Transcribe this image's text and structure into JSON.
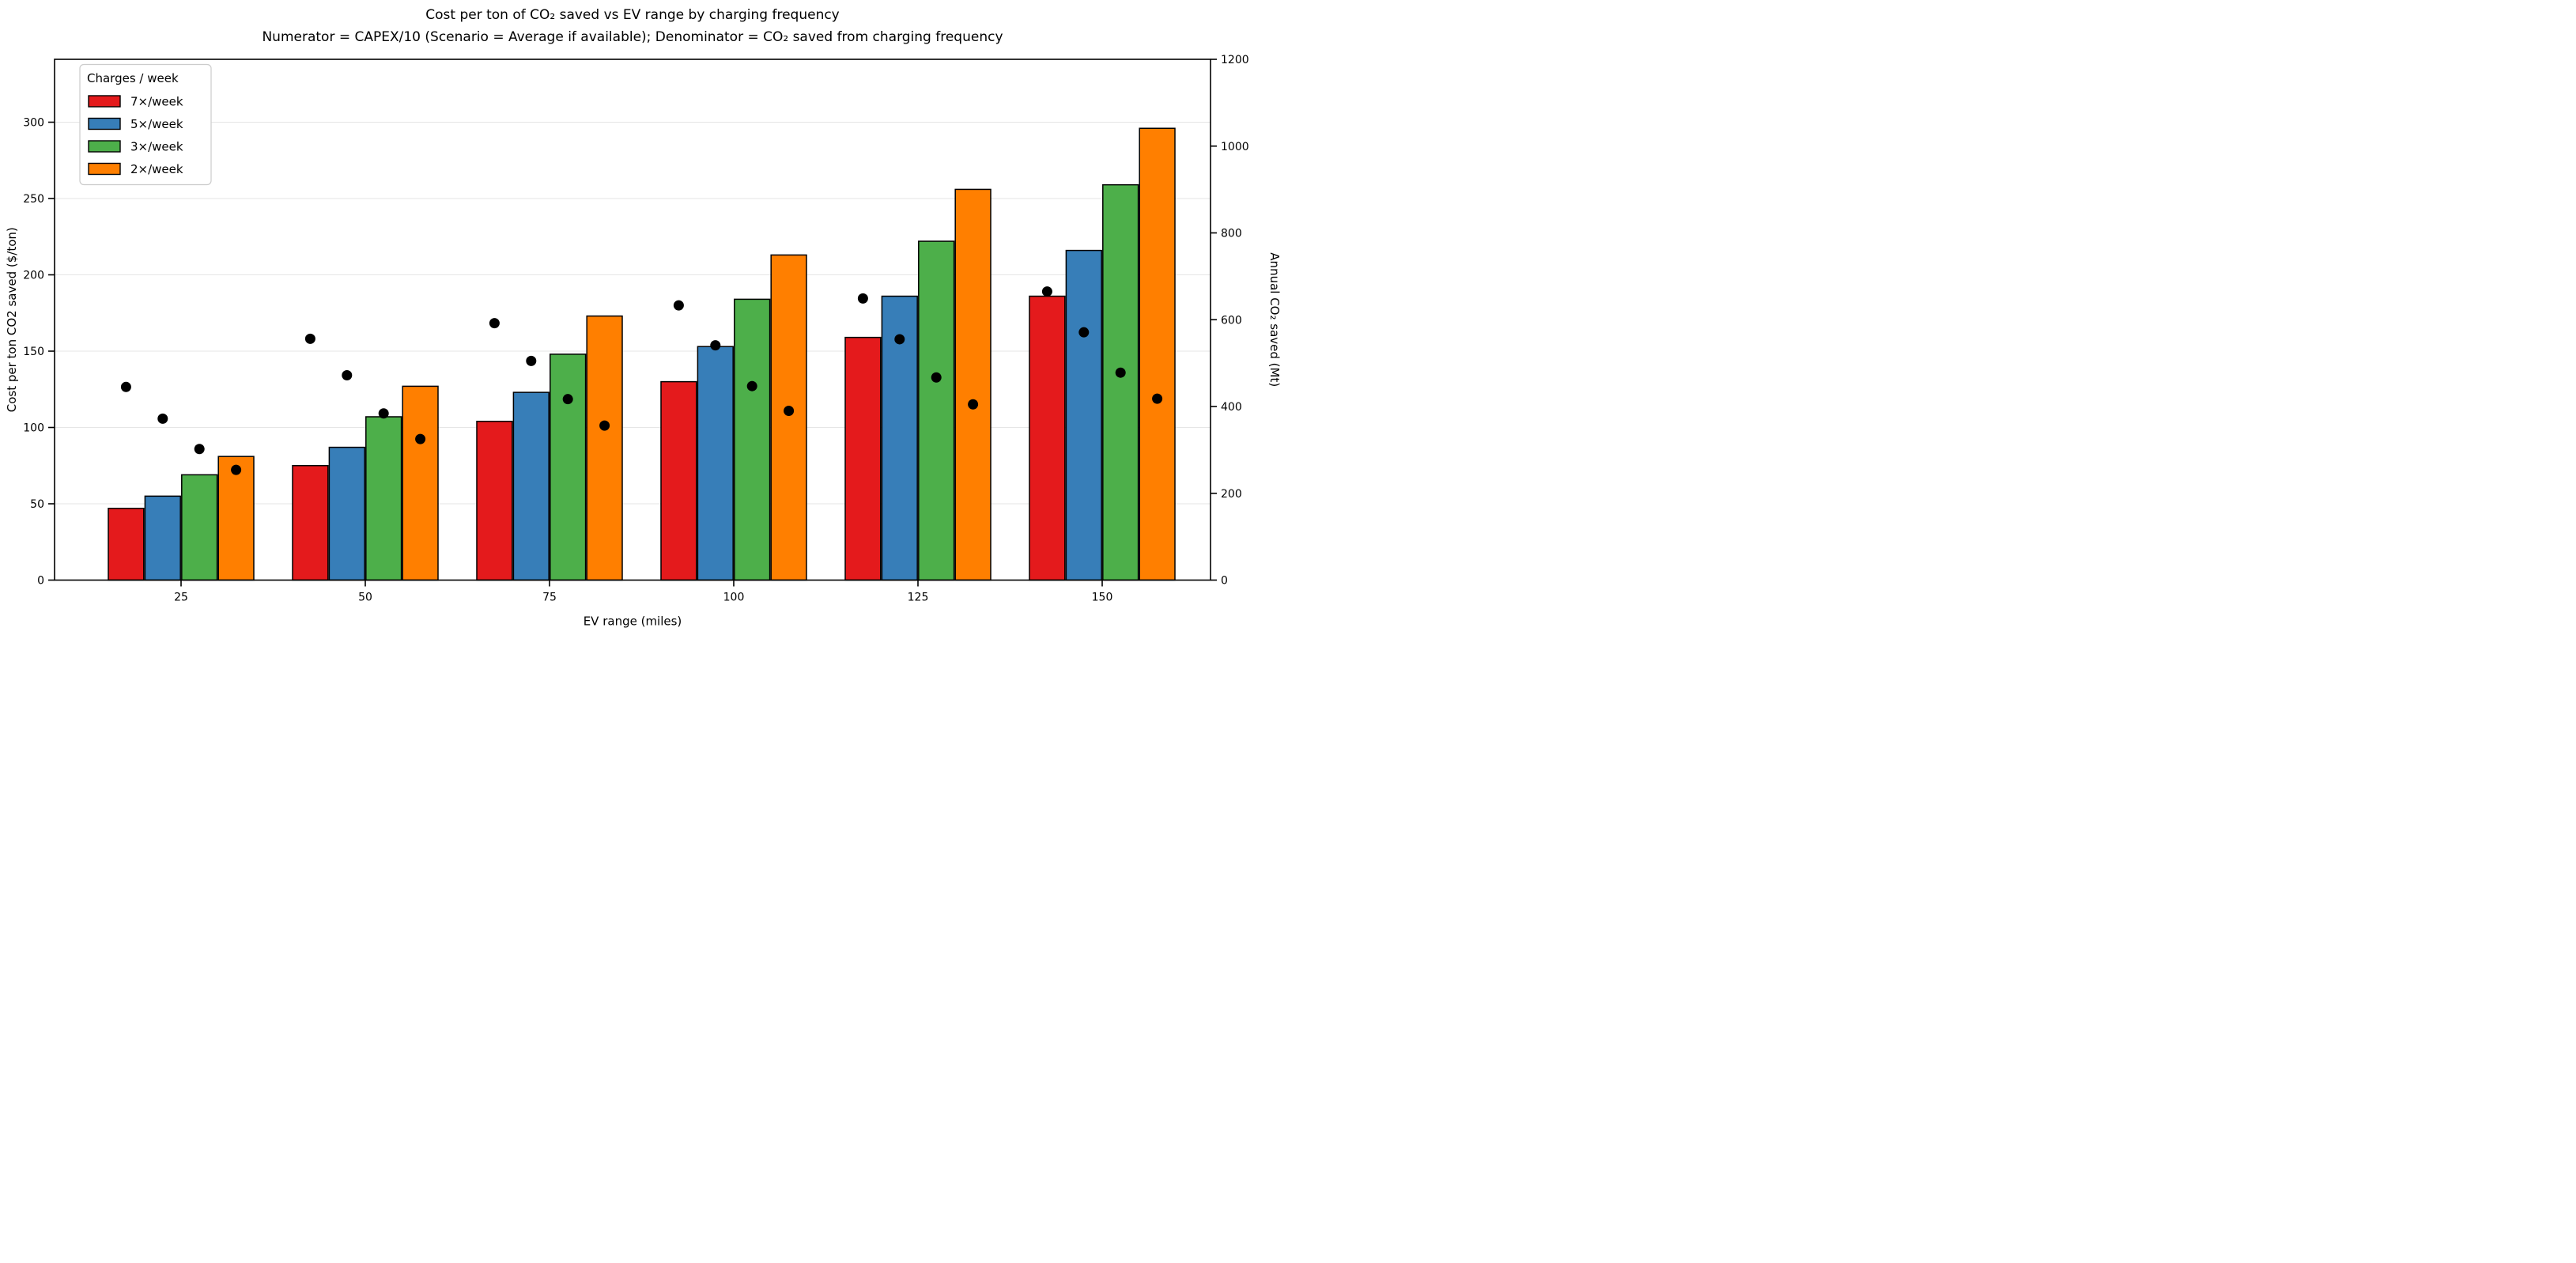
{
  "figure": {
    "background": "#ffffff"
  },
  "chart_data": {
    "type": "bar",
    "subtype": "grouped-bars-with-scatter-dual-axis",
    "title": "Cost per ton of CO₂ saved vs EV range by charging frequency",
    "subtitle": "Numerator = CAPEX/10 (Scenario = Average if available); Denominator = CO₂ saved from charging frequency",
    "xlabel": "EV range (miles)",
    "ylabel_left": "Cost per ton CO2 saved ($/ton)",
    "ylabel_right": "Annual CO₂ saved (Mt)",
    "categories": [
      "25",
      "50",
      "75",
      "100",
      "125",
      "150"
    ],
    "series": [
      {
        "name": "7×/week",
        "color": "#e41a1c",
        "values": [
          47,
          75,
          104,
          130,
          159,
          186
        ]
      },
      {
        "name": "5×/week",
        "color": "#377eb8",
        "values": [
          55,
          87,
          123,
          153,
          186,
          216
        ]
      },
      {
        "name": "3×/week",
        "color": "#4daf4a",
        "values": [
          69,
          107,
          148,
          184,
          222,
          259
        ]
      },
      {
        "name": "2×/week",
        "color": "#ff7f00",
        "values": [
          81,
          127,
          173,
          213,
          256,
          296
        ]
      }
    ],
    "scatter_series": [
      {
        "name": "7×/week",
        "values": [
          445,
          556,
          592,
          633,
          649,
          665
        ]
      },
      {
        "name": "5×/week",
        "values": [
          372,
          472,
          505,
          541,
          555,
          571
        ]
      },
      {
        "name": "3×/week",
        "values": [
          302,
          384,
          417,
          447,
          467,
          478
        ]
      },
      {
        "name": "2×/week",
        "values": [
          254,
          325,
          356,
          390,
          405,
          418
        ]
      }
    ],
    "scatter_color": "#000000",
    "bar_edge_color": "#000000",
    "left_axis": {
      "ticks": [
        "0",
        "50",
        "100",
        "150",
        "200",
        "250",
        "300"
      ],
      "tick_values": [
        0,
        50,
        100,
        150,
        200,
        250,
        300
      ],
      "value_at_top": 341.2
    },
    "right_axis": {
      "ticks": [
        "0",
        "200",
        "400",
        "600",
        "800",
        "1000",
        "1200"
      ],
      "tick_values": [
        0,
        200,
        400,
        600,
        800,
        1000,
        1200
      ],
      "value_at_top": 1200
    },
    "grid": {
      "show": true,
      "color": "#e6e6e6",
      "orientation": "horizontal"
    },
    "legend": {
      "title": "Charges / week",
      "position": "upper-left",
      "items": [
        "7×/week",
        "5×/week",
        "3×/week",
        "2×/week"
      ]
    }
  }
}
